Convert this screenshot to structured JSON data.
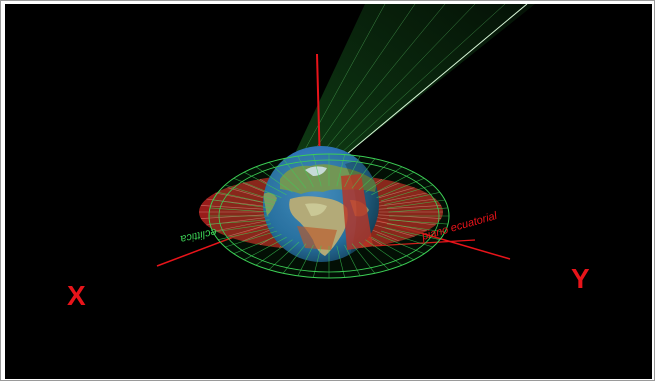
{
  "labels": {
    "axis_x": "X",
    "axis_y": "Y",
    "eclipse_plane": "eclittica",
    "equatorial_plane": "piano ecuatorial"
  },
  "colors": {
    "background": "#000000",
    "axis_red": "#e8141a",
    "ecliptic_green": "#3ccf55",
    "equatorial_red": "#b4211e",
    "sun_beam": "#1f7d2a",
    "ocean": "#2a6fb0",
    "land": "#c9b183"
  },
  "icons": {
    "earth": "earth-globe-icon"
  }
}
